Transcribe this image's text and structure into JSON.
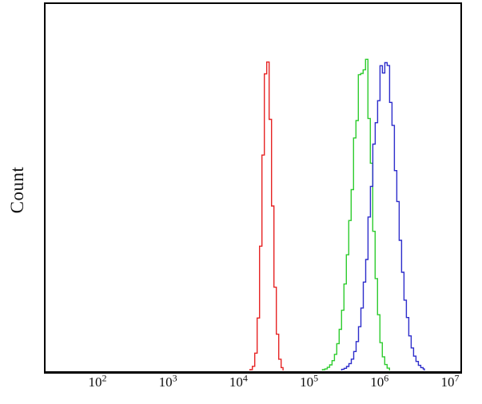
{
  "chart_data": {
    "type": "line",
    "subtype": "flow-cytometry-histogram-overlay",
    "title": "",
    "xlabel": "",
    "ylabel": "Count",
    "xscale": "log",
    "xlim_log": [
      1.263,
      7.148
    ],
    "ylim": [
      0,
      1
    ],
    "grid": false,
    "legend": null,
    "background_color": "#ffffff",
    "axis_color": "#000000",
    "bin_width_decades": 0.034,
    "noise_amplitude": 0.09,
    "xticks": [
      {
        "log": 2,
        "base": "10",
        "exp": "2"
      },
      {
        "log": 3,
        "base": "10",
        "exp": "3"
      },
      {
        "log": 4,
        "base": "10",
        "exp": "4"
      },
      {
        "log": 5,
        "base": "10",
        "exp": "5"
      },
      {
        "log": 6,
        "base": "10",
        "exp": "6"
      },
      {
        "log": 7,
        "base": "10",
        "exp": "7"
      }
    ],
    "series": [
      {
        "name": "red-population",
        "color": "#e62424",
        "peak_value": 25000,
        "peak_log": 4.39,
        "sigma_left_decades": 0.066,
        "sigma_right_decades": 0.07,
        "height_frac": 0.858,
        "cutoff_sigmas": 3.45
      },
      {
        "name": "green-population",
        "color": "#2ecc2e",
        "peak_value": 590000,
        "peak_log": 5.77,
        "sigma_left_decades": 0.168,
        "sigma_right_decades": 0.108,
        "height_frac": 0.852,
        "cutoff_sigmas": 3.45
      },
      {
        "name": "blue-population",
        "color": "#2c2ccb",
        "peak_value": 1120000,
        "peak_log": 6.05,
        "sigma_left_decades": 0.175,
        "sigma_right_decades": 0.175,
        "height_frac": 0.845,
        "cutoff_sigmas": 3.35
      }
    ]
  }
}
